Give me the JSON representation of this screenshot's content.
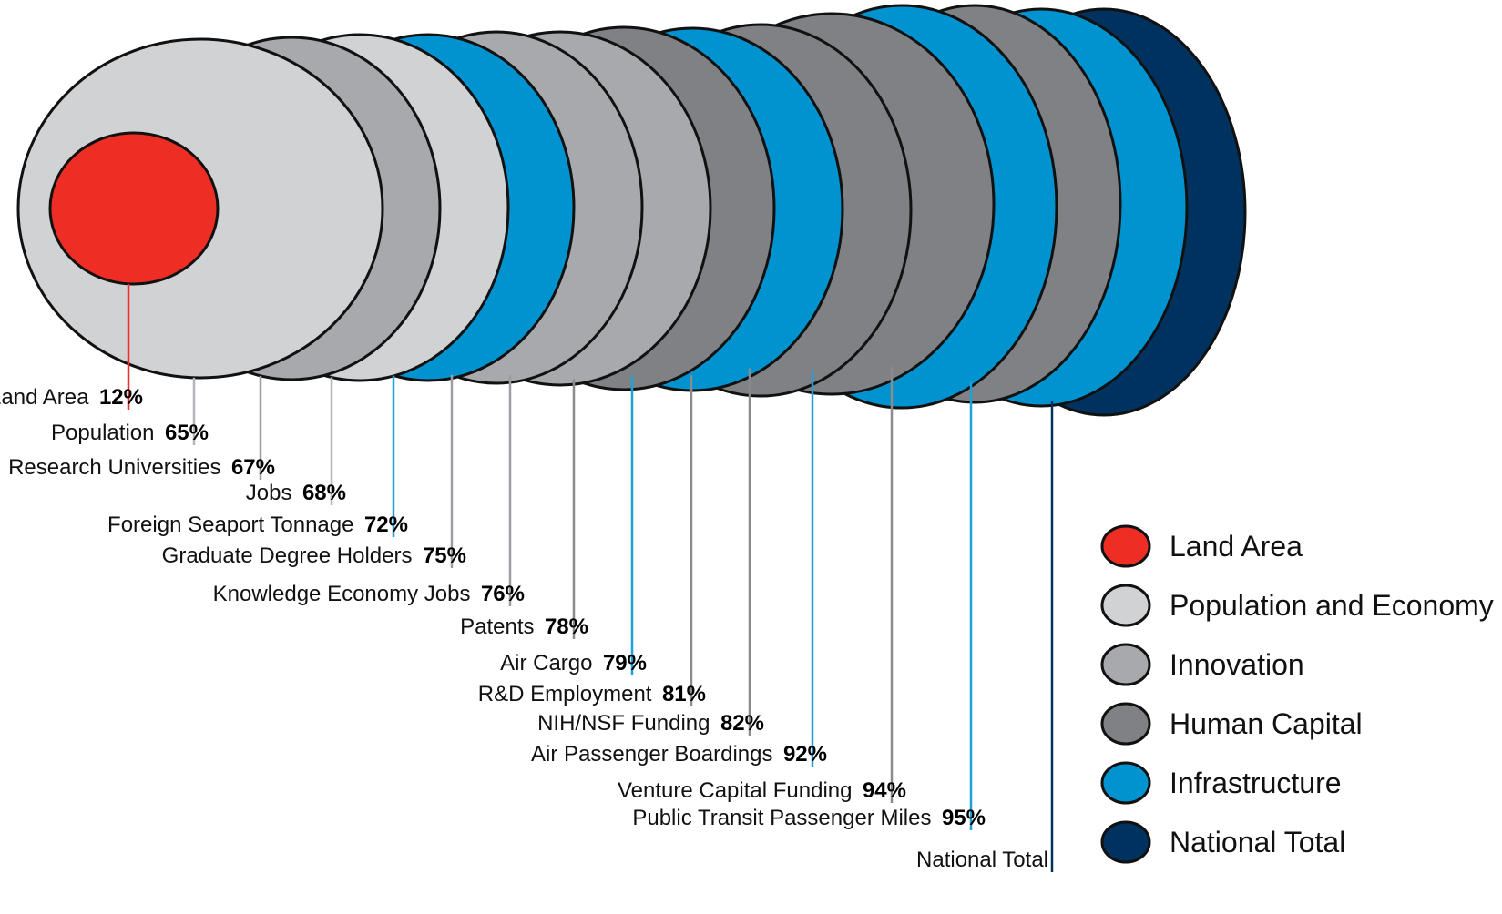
{
  "chart_data": {
    "type": "bubble-overlap",
    "items": [
      {
        "label": "National Total",
        "value": null,
        "pct": "",
        "category": "National Total"
      },
      {
        "label": "Public Transit Passenger Miles",
        "value": 95,
        "pct": "95%",
        "category": "Infrastructure"
      },
      {
        "label": "Venture Capital Funding",
        "value": 94,
        "pct": "94%",
        "category": "Human Capital"
      },
      {
        "label": "Air Passenger Boardings",
        "value": 92,
        "pct": "92%",
        "category": "Infrastructure"
      },
      {
        "label": "NIH/NSF Funding",
        "value": 82,
        "pct": "82%",
        "category": "Human Capital"
      },
      {
        "label": "R&D Employment",
        "value": 81,
        "pct": "81%",
        "category": "Human Capital"
      },
      {
        "label": "Air Cargo",
        "value": 79,
        "pct": "79%",
        "category": "Infrastructure"
      },
      {
        "label": "Patents",
        "value": 78,
        "pct": "78%",
        "category": "Human Capital"
      },
      {
        "label": "Knowledge Economy Jobs",
        "value": 76,
        "pct": "76%",
        "category": "Innovation"
      },
      {
        "label": "Graduate Degree Holders",
        "value": 75,
        "pct": "75%",
        "category": "Innovation"
      },
      {
        "label": "Foreign Seaport Tonnage",
        "value": 72,
        "pct": "72%",
        "category": "Infrastructure"
      },
      {
        "label": "Jobs",
        "value": 68,
        "pct": "68%",
        "category": "Population and Economy"
      },
      {
        "label": "Research Universities",
        "value": 67,
        "pct": "67%",
        "category": "Innovation"
      },
      {
        "label": "Population",
        "value": 65,
        "pct": "65%",
        "category": "Population and Economy"
      },
      {
        "label": "Land Area",
        "value": 12,
        "pct": "12%",
        "category": "Land Area"
      }
    ],
    "legend": [
      {
        "label": "Land Area",
        "color": "#ee2e24"
      },
      {
        "label": "Population and Economy",
        "color": "#d1d2d4"
      },
      {
        "label": "Innovation",
        "color": "#a7a9ac"
      },
      {
        "label": "Human Capital",
        "color": "#808184"
      },
      {
        "label": "Infrastructure",
        "color": "#0093d0"
      },
      {
        "label": "National Total",
        "color": "#00325f"
      }
    ],
    "legend_placement": "bottom-right"
  }
}
